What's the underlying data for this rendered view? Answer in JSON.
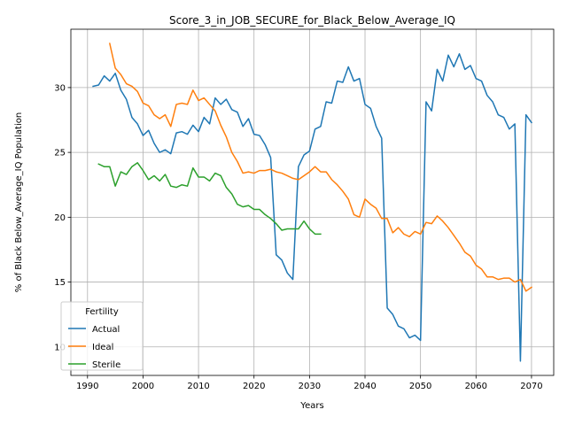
{
  "chart_data": {
    "type": "line",
    "title": "Score_3_in_JOB_SECURE_for_Black_Below_Average_IQ",
    "xlabel": "Years",
    "ylabel": "% of Black Below_Average_IQ Population",
    "xlim": [
      1987,
      2074
    ],
    "ylim": [
      7.8,
      34.5
    ],
    "xticks": [
      1990,
      2000,
      2010,
      2020,
      2030,
      2040,
      2050,
      2060,
      2070
    ],
    "yticks": [
      10,
      15,
      20,
      25,
      30
    ],
    "grid": true,
    "legend": {
      "title": "Fertility",
      "placement": "lower-left"
    },
    "series": [
      {
        "name": "Actual",
        "color": "#1f77b4",
        "x": [
          1991,
          1992,
          1993,
          1994,
          1995,
          1996,
          1997,
          1998,
          1999,
          2000,
          2001,
          2002,
          2003,
          2004,
          2005,
          2006,
          2007,
          2008,
          2009,
          2010,
          2011,
          2012,
          2013,
          2014,
          2015,
          2016,
          2017,
          2018,
          2019,
          2020,
          2021,
          2022,
          2023,
          2024,
          2025,
          2026,
          2027,
          2028,
          2029,
          2030,
          2031,
          2032,
          2033,
          2034,
          2035,
          2036,
          2037,
          2038,
          2039,
          2040,
          2041,
          2042,
          2043,
          2044,
          2045,
          2046,
          2047,
          2048,
          2049,
          2050,
          2051,
          2052,
          2053,
          2054,
          2055,
          2056,
          2057,
          2058,
          2059,
          2060,
          2061,
          2062,
          2063,
          2064,
          2065,
          2066,
          2067,
          2068,
          2069,
          2070
        ],
        "values": [
          30.1,
          30.2,
          30.9,
          30.5,
          31.1,
          29.8,
          29.1,
          27.7,
          27.2,
          26.3,
          26.7,
          25.7,
          25.0,
          25.2,
          24.9,
          26.5,
          26.6,
          26.4,
          27.1,
          26.6,
          27.7,
          27.2,
          29.2,
          28.7,
          29.1,
          28.3,
          28.1,
          27.0,
          27.6,
          26.4,
          26.3,
          25.6,
          24.6,
          17.1,
          16.7,
          15.7,
          15.2,
          23.9,
          24.8,
          25.1,
          26.8,
          27.0,
          28.9,
          28.8,
          30.5,
          30.4,
          31.6,
          30.5,
          30.7,
          28.7,
          28.4,
          27.0,
          26.1,
          13.0,
          12.5,
          11.6,
          11.4,
          10.7,
          10.9,
          10.5,
          28.9,
          28.2,
          31.4,
          30.5,
          32.5,
          31.6,
          32.6,
          31.4,
          31.7,
          30.7,
          30.5,
          29.4,
          28.9,
          27.9,
          27.7,
          26.8,
          27.2,
          8.9,
          27.9,
          27.3
        ]
      },
      {
        "name": "Ideal",
        "color": "#ff7f0e",
        "x": [
          1994,
          1995,
          1996,
          1997,
          1998,
          1999,
          2000,
          2001,
          2002,
          2003,
          2004,
          2005,
          2006,
          2007,
          2008,
          2009,
          2010,
          2011,
          2012,
          2013,
          2014,
          2015,
          2016,
          2017,
          2018,
          2019,
          2020,
          2021,
          2022,
          2023,
          2024,
          2025,
          2026,
          2027,
          2028,
          2029,
          2030,
          2031,
          2032,
          2033,
          2034,
          2035,
          2036,
          2037,
          2038,
          2039,
          2040,
          2041,
          2042,
          2043,
          2044,
          2045,
          2046,
          2047,
          2048,
          2049,
          2050,
          2051,
          2052,
          2053,
          2054,
          2055,
          2056,
          2057,
          2058,
          2059,
          2060,
          2061,
          2062,
          2063,
          2064,
          2065,
          2066,
          2067,
          2068,
          2069,
          2070
        ],
        "values": [
          33.4,
          31.5,
          31.0,
          30.3,
          30.1,
          29.7,
          28.8,
          28.6,
          27.9,
          27.6,
          27.9,
          27.0,
          28.7,
          28.8,
          28.7,
          29.8,
          29.0,
          29.2,
          28.7,
          28.2,
          27.1,
          26.2,
          25.0,
          24.3,
          23.4,
          23.5,
          23.4,
          23.6,
          23.6,
          23.7,
          23.5,
          23.4,
          23.2,
          23.0,
          22.9,
          23.2,
          23.5,
          23.9,
          23.5,
          23.5,
          22.9,
          22.5,
          22.0,
          21.4,
          20.2,
          20.0,
          21.4,
          21.0,
          20.7,
          19.9,
          19.9,
          18.8,
          19.2,
          18.7,
          18.5,
          18.9,
          18.7,
          19.6,
          19.5,
          20.1,
          19.7,
          19.2,
          18.6,
          18.0,
          17.3,
          17.0,
          16.3,
          16.0,
          15.4,
          15.4,
          15.2,
          15.3,
          15.3,
          15.0,
          15.2,
          14.3,
          14.6
        ]
      },
      {
        "name": "Sterile",
        "color": "#2ca02c",
        "x": [
          1992,
          1993,
          1994,
          1995,
          1996,
          1997,
          1998,
          1999,
          2000,
          2001,
          2002,
          2003,
          2004,
          2005,
          2006,
          2007,
          2008,
          2009,
          2010,
          2011,
          2012,
          2013,
          2014,
          2015,
          2016,
          2017,
          2018,
          2019,
          2020,
          2021,
          2022,
          2023,
          2024,
          2025,
          2026,
          2027,
          2028,
          2029,
          2030,
          2031,
          2032
        ],
        "values": [
          24.1,
          23.9,
          23.9,
          22.4,
          23.5,
          23.3,
          23.9,
          24.2,
          23.6,
          22.9,
          23.2,
          22.8,
          23.3,
          22.4,
          22.3,
          22.5,
          22.4,
          23.8,
          23.1,
          23.1,
          22.8,
          23.4,
          23.2,
          22.3,
          21.8,
          21.0,
          20.8,
          20.9,
          20.6,
          20.6,
          20.2,
          19.9,
          19.5,
          19.0,
          19.1,
          19.1,
          19.1,
          19.7,
          19.1,
          18.7,
          18.7
        ]
      }
    ]
  }
}
